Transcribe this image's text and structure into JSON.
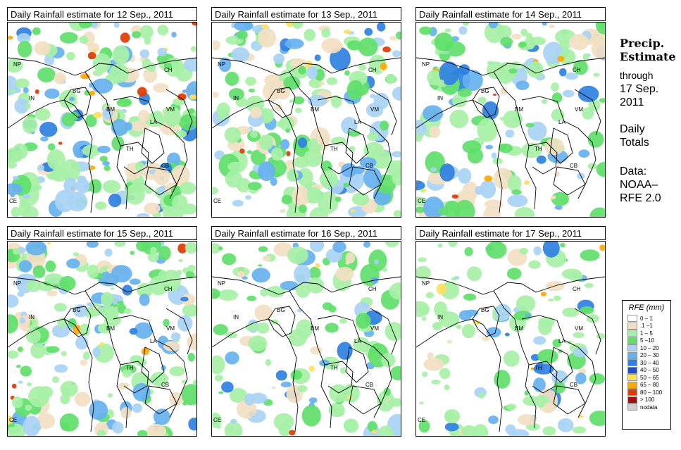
{
  "panels": [
    {
      "title": "Daily Rainfall estimate for  12 Sep., 2011",
      "wetness": 0.9,
      "seed": 12
    },
    {
      "title": "Daily Rainfall estimate for  13 Sep., 2011",
      "wetness": 0.85,
      "seed": 13
    },
    {
      "title": "Daily Rainfall estimate for  14 Sep., 2011",
      "wetness": 0.7,
      "seed": 14
    },
    {
      "title": "Daily Rainfall estimate for  15 Sep., 2011",
      "wetness": 0.85,
      "seed": 15
    },
    {
      "title": "Daily Rainfall estimate for  16 Sep., 2011",
      "wetness": 0.55,
      "seed": 16
    },
    {
      "title": "Daily Rainfall estimate for  17 Sep., 2011",
      "wetness": 0.5,
      "seed": 17
    }
  ],
  "country_labels": [
    "NP",
    "CH",
    "IN",
    "BG",
    "BM",
    "VM",
    "LA",
    "TH",
    "CB",
    "CE"
  ],
  "sidebar": {
    "heading_line1": "Precip.",
    "heading_line2": "Estimate",
    "through": "through",
    "date_line1": "17 Sep.",
    "date_line2": "2011",
    "daily_line1": "Daily",
    "daily_line2": "Totals",
    "data_line1": "Data:",
    "data_line2": "NOAA–",
    "data_line3": "RFE 2.0"
  },
  "legend": {
    "title": "RFE (mm)",
    "items": [
      {
        "label": "0 – 1",
        "color": "#ffffff"
      },
      {
        "label": ".1 –1",
        "color": "#f2dfc3"
      },
      {
        "label": "1 – 5",
        "color": "#a6f0a6"
      },
      {
        "label": "5 –10",
        "color": "#60e06a"
      },
      {
        "label": "10 – 20",
        "color": "#a9d3f5"
      },
      {
        "label": "20 – 30",
        "color": "#67b1ef"
      },
      {
        "label": "30 – 40",
        "color": "#2f80e0"
      },
      {
        "label": "40 – 50",
        "color": "#1f4fc8"
      },
      {
        "label": "50 – 65",
        "color": "#ffe060"
      },
      {
        "label": "65 – 80",
        "color": "#ffa800"
      },
      {
        "label": "80 – 100",
        "color": "#e03a00"
      },
      {
        "label": "> 100",
        "color": "#a01010"
      },
      {
        "label": "nodata",
        "color": "#d0d0d0"
      }
    ]
  }
}
